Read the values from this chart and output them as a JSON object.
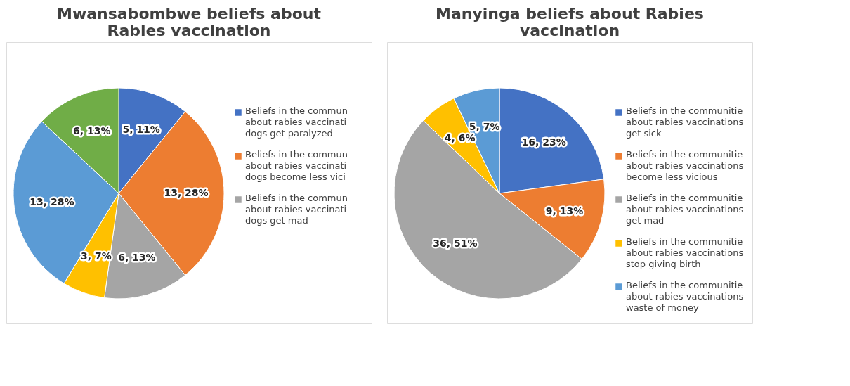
{
  "chart_data": [
    {
      "type": "pie",
      "title": "Mwansabombwe beliefs about Rabies vaccination",
      "categories": [
        "Beliefs in the commun about rabies vaccinati dogs get paralyzed",
        "Beliefs in the commun about rabies vaccinati dogs become less vici",
        "Beliefs in the commun about rabies vaccinati dogs get mad",
        null,
        null,
        null
      ],
      "values": [
        5,
        13,
        6,
        3,
        13,
        6
      ],
      "value_labels": [
        "5, 11%",
        "13, 28%",
        "6, 13%",
        "3, 7%",
        "13, 28%",
        "6, 13%"
      ],
      "colors": [
        "#4472c4",
        "#ed7d31",
        "#a5a5a5",
        "#ffc000",
        "#5b9bd5",
        "#70ad47"
      ],
      "legend": "right"
    },
    {
      "type": "pie",
      "title": "Manyinga beliefs about Rabies vaccination",
      "categories": [
        "Beliefs in the communitie about rabies vaccinations get sick",
        "Beliefs in the communitie about rabies vaccinations become less vicious",
        "Beliefs in the communitie about rabies vaccinations get mad",
        "Beliefs in the communitie about rabies vaccinations stop giving birth",
        "Beliefs in the communitie about rabies vaccinations waste of money"
      ],
      "values": [
        16,
        9,
        36,
        4,
        5
      ],
      "value_labels": [
        "16, 23%",
        "9, 13%",
        "36, 51%",
        "4, 6%",
        "5, 7%"
      ],
      "colors": [
        "#4472c4",
        "#ed7d31",
        "#a5a5a5",
        "#ffc000",
        "#5b9bd5"
      ],
      "legend": "right"
    }
  ]
}
